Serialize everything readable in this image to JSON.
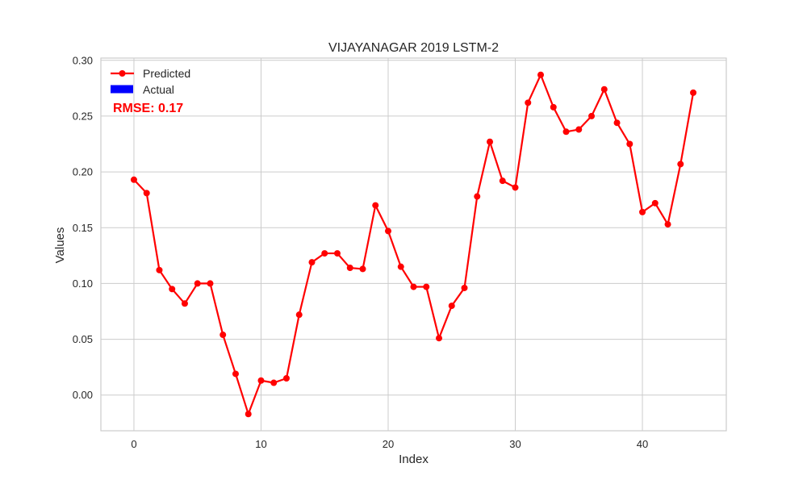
{
  "chart_data": {
    "type": "line",
    "title": "VIJAYANAGAR 2019 LSTM-2",
    "xlabel": "Index",
    "ylabel": "Values",
    "xlim": [
      -2.6,
      46.6
    ],
    "ylim": [
      -0.032,
      0.302
    ],
    "x_ticks": [
      0,
      10,
      20,
      30,
      40
    ],
    "y_ticks": [
      0.0,
      0.05,
      0.1,
      0.15,
      0.2,
      0.25,
      0.3
    ],
    "y_tick_labels": [
      "0.00",
      "0.05",
      "0.10",
      "0.15",
      "0.20",
      "0.25",
      "0.30"
    ],
    "grid": true,
    "legend_position": "top-left",
    "series": [
      {
        "name": "Predicted",
        "color": "#ff0000",
        "marker": "circle",
        "x": [
          0,
          1,
          2,
          3,
          4,
          5,
          6,
          7,
          8,
          9,
          10,
          11,
          12,
          13,
          14,
          15,
          16,
          17,
          18,
          19,
          20,
          21,
          22,
          23,
          24,
          25,
          26,
          27,
          28,
          29,
          30,
          31,
          32,
          33,
          34,
          35,
          36,
          37,
          38,
          39,
          40,
          41,
          42,
          43,
          44
        ],
        "values": [
          0.193,
          0.181,
          0.112,
          0.095,
          0.082,
          0.1,
          0.1,
          0.054,
          0.019,
          -0.017,
          0.013,
          0.011,
          0.015,
          0.072,
          0.119,
          0.127,
          0.127,
          0.114,
          0.113,
          0.17,
          0.147,
          0.115,
          0.097,
          0.097,
          0.051,
          0.08,
          0.096,
          0.178,
          0.227,
          0.192,
          0.186,
          0.262,
          0.287,
          0.258,
          0.236,
          0.238,
          0.25,
          0.274,
          0.244,
          0.225,
          0.164,
          0.172,
          0.153,
          0.207,
          0.271
        ]
      },
      {
        "name": "Actual",
        "color": "#0000ff",
        "marker": "patch",
        "values": []
      }
    ],
    "annotations": [
      {
        "text": "RMSE: 0.17",
        "color": "#ff0000"
      }
    ]
  }
}
